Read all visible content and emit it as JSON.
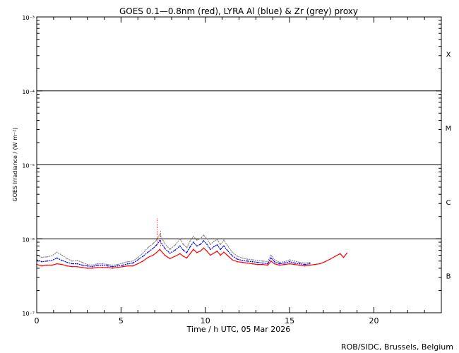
{
  "chart_data": {
    "type": "line",
    "title": "GOES 0.1—0.8nm (red), LYRA Al (blue) & Zr (grey) proxy",
    "xlabel": "Time / h UTC, 05 Mar 2026",
    "ylabel": "GOES Irradiance / (W m⁻²)",
    "xlim": [
      0,
      24
    ],
    "ylim": [
      1e-07,
      0.001
    ],
    "yscale": "log",
    "x_ticks": [
      {
        "value": 0,
        "label": "0"
      },
      {
        "value": 5,
        "label": "5"
      },
      {
        "value": 10,
        "label": "10"
      },
      {
        "value": 15,
        "label": "15"
      },
      {
        "value": 20,
        "label": "20"
      }
    ],
    "y_ticks": [
      {
        "value": 1e-07,
        "label": "10⁻⁷"
      },
      {
        "value": 1e-06,
        "label": "10⁻⁶"
      },
      {
        "value": 1e-05,
        "label": "10⁻⁵"
      },
      {
        "value": 0.0001,
        "label": "10⁻⁴"
      },
      {
        "value": 0.001,
        "label": "10⁻³"
      }
    ],
    "flare_thresholds": [
      1e-06,
      1e-05,
      0.0001
    ],
    "flare_classes": [
      {
        "label": "X",
        "value": 0.000316
      },
      {
        "label": "M",
        "value": 3.16e-05
      },
      {
        "label": "C",
        "value": 3.16e-06
      },
      {
        "label": "B",
        "value": 3.16e-07
      }
    ],
    "series": [
      {
        "name": "red",
        "color": "#ff0000",
        "x": [
          0,
          0.3,
          0.6,
          0.9,
          1.2,
          1.5,
          1.8,
          2.1,
          2.4,
          2.7,
          3.0,
          3.3,
          3.6,
          3.9,
          4.2,
          4.5,
          4.8,
          5.1,
          5.4,
          5.7,
          6.0,
          6.3,
          6.6,
          6.9,
          7.1,
          7.3,
          7.6,
          7.9,
          8.2,
          8.5,
          8.7,
          8.9,
          9.1,
          9.3,
          9.5,
          9.7,
          9.9,
          10.1,
          10.3,
          10.5,
          10.7,
          10.9,
          11.1,
          11.3,
          11.6,
          11.9,
          12.2,
          12.5,
          12.8,
          13.1,
          13.4,
          13.7,
          13.9,
          14.1,
          14.4,
          14.7,
          15.0,
          15.3,
          15.6,
          15.9,
          16.2,
          16.5,
          16.8,
          17.1,
          17.4,
          17.7,
          18.0,
          18.2,
          18.4
        ],
        "y": [
          4.5e-07,
          4.3e-07,
          4.4e-07,
          4.4e-07,
          4.6e-07,
          4.5e-07,
          4.3e-07,
          4.2e-07,
          4.2e-07,
          4.1e-07,
          4e-07,
          4e-07,
          4.1e-07,
          4.1e-07,
          4.1e-07,
          4e-07,
          4.1e-07,
          4.2e-07,
          4.3e-07,
          4.3e-07,
          4.6e-07,
          5e-07,
          5.6e-07,
          6e-07,
          6.5e-07,
          7.2e-07,
          6e-07,
          5.4e-07,
          5.8e-07,
          6.3e-07,
          5.8e-07,
          5.5e-07,
          6.3e-07,
          7.2e-07,
          6.5e-07,
          6.8e-07,
          7.5e-07,
          6.8e-07,
          6e-07,
          6.4e-07,
          6.8e-07,
          6e-07,
          6.6e-07,
          6e-07,
          5.2e-07,
          4.9e-07,
          4.8e-07,
          4.7e-07,
          4.6e-07,
          4.5e-07,
          4.5e-07,
          4.4e-07,
          5e-07,
          4.6e-07,
          4.4e-07,
          4.5e-07,
          4.6e-07,
          4.5e-07,
          4.4e-07,
          4.3e-07,
          4.4e-07,
          4.5e-07,
          4.6e-07,
          4.9e-07,
          5.3e-07,
          5.8e-07,
          6.3e-07,
          5.6e-07,
          6.4e-07
        ]
      },
      {
        "name": "blue",
        "color": "#0000ff",
        "x": [
          0,
          0.3,
          0.6,
          0.9,
          1.2,
          1.5,
          1.8,
          2.1,
          2.4,
          2.7,
          3.0,
          3.3,
          3.6,
          3.9,
          4.2,
          4.5,
          4.8,
          5.1,
          5.4,
          5.7,
          6.0,
          6.3,
          6.6,
          6.9,
          7.1,
          7.3,
          7.6,
          7.9,
          8.2,
          8.5,
          8.7,
          8.9,
          9.1,
          9.3,
          9.5,
          9.7,
          9.9,
          10.1,
          10.3,
          10.5,
          10.7,
          10.9,
          11.1,
          11.3,
          11.6,
          11.9,
          12.2,
          12.5,
          12.8,
          13.1,
          13.4,
          13.7,
          13.9,
          14.1,
          14.4,
          14.7,
          15.0,
          15.3,
          15.6,
          15.9,
          16.2
        ],
        "y": [
          5.2e-07,
          4.9e-07,
          5e-07,
          5.1e-07,
          5.5e-07,
          5.1e-07,
          4.8e-07,
          4.6e-07,
          4.6e-07,
          4.4e-07,
          4.3e-07,
          4.2e-07,
          4.4e-07,
          4.4e-07,
          4.3e-07,
          4.2e-07,
          4.3e-07,
          4.4e-07,
          4.6e-07,
          4.7e-07,
          5.2e-07,
          5.8e-07,
          6.6e-07,
          7.4e-07,
          8.2e-07,
          9.5e-07,
          7.4e-07,
          6.4e-07,
          7e-07,
          8e-07,
          7e-07,
          6.5e-07,
          7.8e-07,
          9e-07,
          8e-07,
          8.4e-07,
          9.4e-07,
          8.4e-07,
          7.2e-07,
          7.8e-07,
          8.3e-07,
          7.2e-07,
          8e-07,
          7e-07,
          5.9e-07,
          5.3e-07,
          5.1e-07,
          5e-07,
          4.9e-07,
          4.8e-07,
          4.7e-07,
          4.6e-07,
          5.5e-07,
          4.9e-07,
          4.6e-07,
          4.7e-07,
          4.9e-07,
          4.7e-07,
          4.6e-07,
          4.5e-07,
          4.6e-07
        ]
      },
      {
        "name": "grey",
        "color": "#8a8a8a",
        "x": [
          0,
          0.3,
          0.6,
          0.9,
          1.2,
          1.5,
          1.8,
          2.1,
          2.4,
          2.7,
          3.0,
          3.3,
          3.6,
          3.9,
          4.2,
          4.5,
          4.8,
          5.1,
          5.4,
          5.7,
          6.0,
          6.3,
          6.6,
          6.9,
          7.1,
          7.3,
          7.6,
          7.9,
          8.2,
          8.5,
          8.7,
          8.9,
          9.1,
          9.3,
          9.5,
          9.7,
          9.9,
          10.1,
          10.3,
          10.5,
          10.7,
          10.9,
          11.1,
          11.3,
          11.6,
          11.9,
          12.2,
          12.5,
          12.8,
          13.1,
          13.4,
          13.7,
          13.9,
          14.1,
          14.4,
          14.7,
          15.0,
          15.3,
          15.6,
          15.9,
          16.2
        ],
        "y": [
          6e-07,
          5.6e-07,
          5.7e-07,
          5.9e-07,
          6.6e-07,
          6e-07,
          5.4e-07,
          5e-07,
          5.1e-07,
          4.8e-07,
          4.5e-07,
          4.4e-07,
          4.6e-07,
          4.6e-07,
          4.5e-07,
          4.4e-07,
          4.5e-07,
          4.7e-07,
          4.9e-07,
          5e-07,
          5.6e-07,
          6.4e-07,
          7.6e-07,
          8.6e-07,
          9.6e-07,
          1.15e-06,
          8.6e-07,
          7.2e-07,
          8.2e-07,
          1e-06,
          8.4e-07,
          7.6e-07,
          9.4e-07,
          1.08e-06,
          9.6e-07,
          1e-06,
          1.12e-06,
          1e-06,
          8.4e-07,
          9.2e-07,
          9.8e-07,
          8.4e-07,
          9.6e-07,
          8.2e-07,
          6.6e-07,
          5.8e-07,
          5.5e-07,
          5.3e-07,
          5.2e-07,
          5.1e-07,
          5e-07,
          4.9e-07,
          6e-07,
          5.2e-07,
          4.8e-07,
          4.9e-07,
          5.2e-07,
          5e-07,
          4.8e-07,
          4.7e-07,
          4.8e-07
        ]
      }
    ],
    "spikes": [
      {
        "x": 7.15,
        "y_low": 9e-07,
        "y_high": 1.9e-06,
        "color": "#ff0000"
      },
      {
        "x": 7.35,
        "y_low": 8e-07,
        "y_high": 1.3e-06,
        "color": "#ff0000"
      }
    ],
    "credit": "ROB/SIDC, Brussels, Belgium"
  }
}
